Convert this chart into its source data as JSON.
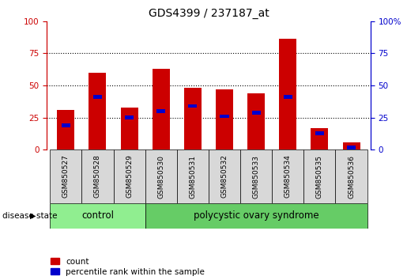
{
  "title": "GDS4399 / 237187_at",
  "samples": [
    "GSM850527",
    "GSM850528",
    "GSM850529",
    "GSM850530",
    "GSM850531",
    "GSM850532",
    "GSM850533",
    "GSM850534",
    "GSM850535",
    "GSM850536"
  ],
  "count_values": [
    31,
    60,
    33,
    63,
    48,
    47,
    44,
    86,
    17,
    6
  ],
  "percentile_values": [
    19,
    41,
    25,
    30,
    34,
    26,
    29,
    41,
    13,
    2
  ],
  "groups": [
    {
      "label": "control",
      "start": 0,
      "end": 3,
      "color": "#90EE90"
    },
    {
      "label": "polycystic ovary syndrome",
      "start": 3,
      "end": 10,
      "color": "#66CC66"
    }
  ],
  "bar_color": "#CC0000",
  "marker_color": "#0000CC",
  "left_axis_color": "#CC0000",
  "right_axis_color": "#0000CC",
  "ylim_left": [
    0,
    100
  ],
  "ylim_right": [
    0,
    100
  ],
  "yticks": [
    0,
    25,
    50,
    75,
    100
  ],
  "grid_color": "black",
  "bg_color": "#d8d8d8",
  "plot_bg": "white",
  "bar_width": 0.55,
  "disease_state_label": "disease state",
  "legend_count_label": "count",
  "legend_percentile_label": "percentile rank within the sample",
  "title_fontsize": 10,
  "tick_fontsize": 7.5,
  "sample_fontsize": 6.5,
  "group_fontsize": 8.5
}
